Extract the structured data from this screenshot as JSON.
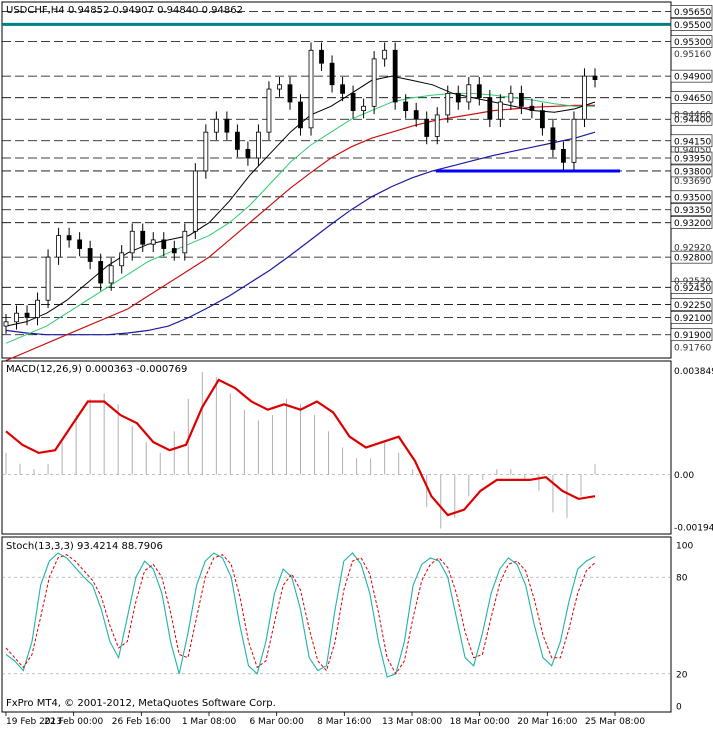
{
  "header": {
    "symbol": "USDCHF,H4",
    "ohlc": "0.94852 0.94907 0.94840 0.94862",
    "macd_label": "MACD(12,26,9) 0.000363 -0.000769",
    "stoch_label": "Stoch(13,3,3) 93.4214 88.7906",
    "copyright": "FxPro MT4, © 2001-2012, MetaQuotes Software Corp."
  },
  "colors": {
    "background": "#ffffff",
    "grid": "#000000",
    "candle": "#000000",
    "ma_fast": "#000000",
    "ma_mid": "#2ecc71",
    "ma_slow": "#cc1111",
    "ma_long": "#1a1aa0",
    "support": "#0000ff",
    "resistance": "#008080",
    "macd_hist": "#b0b0b0",
    "macd_signal": "#dd0000",
    "stoch_main": "#20b2aa",
    "stoch_signal": "#dd0000"
  },
  "chart_data": [
    {
      "type": "candlestick",
      "title": "USDCHF,H4",
      "ylim": [
        0.9163,
        0.9576
      ],
      "price_labels": [
        "0.95650",
        "0.95500",
        "0.95300",
        "0.94900",
        "0.94650",
        "0.94400",
        "0.94150",
        "0.93950",
        "0.93800",
        "0.93500",
        "0.93350",
        "0.93200",
        "0.92800",
        "0.92450",
        "0.92250",
        "0.92100",
        "0.91900"
      ],
      "minor_price_labels": [
        "0.95160",
        "0.94460",
        "0.94050",
        "0.93690",
        "0.92920",
        "0.92530",
        "0.91760"
      ],
      "time_labels": [
        "19 Feb 2013",
        "22 Feb 00:00",
        "26 Feb 16:00",
        "1 Mar 08:00",
        "6 Mar 00:00",
        "8 Mar 16:00",
        "13 Mar 08:00",
        "18 Mar 00:00",
        "20 Mar 16:00",
        "25 Mar 08:00"
      ],
      "horizontal_levels": [
        0.9565,
        0.955,
        0.953,
        0.949,
        0.9465,
        0.944,
        0.9415,
        0.9395,
        0.938,
        0.935,
        0.9335,
        0.932,
        0.928,
        0.9245,
        0.9225,
        0.921,
        0.919
      ],
      "resistance_level": 0.955,
      "support_level": 0.938,
      "close_path": [
        0.9205,
        0.9215,
        0.921,
        0.923,
        0.928,
        0.9305,
        0.93,
        0.929,
        0.9275,
        0.925,
        0.927,
        0.9285,
        0.931,
        0.9295,
        0.93,
        0.929,
        0.9285,
        0.931,
        0.938,
        0.9425,
        0.944,
        0.9425,
        0.9405,
        0.9395,
        0.9425,
        0.9475,
        0.948,
        0.946,
        0.943,
        0.952,
        0.9505,
        0.948,
        0.947,
        0.945,
        0.9455,
        0.951,
        0.952,
        0.946,
        0.945,
        0.944,
        0.942,
        0.9445,
        0.947,
        0.946,
        0.948,
        0.9465,
        0.944,
        0.946,
        0.947,
        0.9455,
        0.945,
        0.943,
        0.9405,
        0.939,
        0.944,
        0.949,
        0.9486
      ],
      "ma_fast": [
        0.92,
        0.9205,
        0.9215,
        0.923,
        0.925,
        0.927,
        0.9285,
        0.9295,
        0.93,
        0.9305,
        0.932,
        0.9345,
        0.9375,
        0.94,
        0.9425,
        0.9445,
        0.9455,
        0.947,
        0.9485,
        0.949,
        0.9485,
        0.948,
        0.947,
        0.9465,
        0.946,
        0.9455,
        0.945,
        0.9448,
        0.9452,
        0.946
      ],
      "ma_mid": [
        0.918,
        0.919,
        0.92,
        0.9215,
        0.923,
        0.9245,
        0.926,
        0.9275,
        0.9285,
        0.9295,
        0.9305,
        0.932,
        0.934,
        0.9365,
        0.939,
        0.941,
        0.9425,
        0.944,
        0.945,
        0.946,
        0.9465,
        0.9468,
        0.947,
        0.947,
        0.9468,
        0.9465,
        0.9462,
        0.9458,
        0.9455,
        0.9455
      ],
      "ma_slow": [
        0.916,
        0.917,
        0.918,
        0.919,
        0.92,
        0.921,
        0.922,
        0.9235,
        0.925,
        0.9265,
        0.928,
        0.93,
        0.932,
        0.934,
        0.936,
        0.9378,
        0.9395,
        0.9408,
        0.9418,
        0.9425,
        0.9432,
        0.9438,
        0.9442,
        0.9446,
        0.945,
        0.9452,
        0.9454,
        0.9455,
        0.9456,
        0.9456
      ],
      "ma_long": [
        0.9195,
        0.9192,
        0.919,
        0.919,
        0.919,
        0.919,
        0.9192,
        0.9195,
        0.92,
        0.921,
        0.9222,
        0.9235,
        0.925,
        0.9265,
        0.9282,
        0.93,
        0.9318,
        0.9335,
        0.935,
        0.9362,
        0.9372,
        0.938,
        0.9386,
        0.9392,
        0.9398,
        0.9403,
        0.9408,
        0.9413,
        0.9418,
        0.9425
      ]
    },
    {
      "type": "bar",
      "title": "MACD(12,26,9) 0.000363 -0.000769",
      "ylim": [
        -0.0022,
        0.0042
      ],
      "tick_labels": [
        "0.003849",
        "0.00",
        "-0.00194"
      ],
      "histogram": [
        0.0008,
        0.0004,
        0.0002,
        0.0004,
        0.0012,
        0.0022,
        0.0028,
        0.003,
        0.0026,
        0.0018,
        0.0012,
        0.0008,
        0.0016,
        0.0028,
        0.0038,
        0.0036,
        0.003,
        0.0024,
        0.002,
        0.0022,
        0.0028,
        0.0026,
        0.0022,
        0.0016,
        0.001,
        0.0006,
        0.0006,
        0.0012,
        0.0008,
        0.0002,
        -0.0012,
        -0.002,
        -0.0016,
        -0.0008,
        -0.0002,
        0.0002,
        0.0002,
        -0.0002,
        -0.0006,
        -0.0014,
        -0.0016,
        -0.0008,
        0.0004
      ],
      "signal": [
        0.0016,
        0.0011,
        0.0008,
        0.0009,
        0.0018,
        0.0027,
        0.0027,
        0.0022,
        0.0019,
        0.0012,
        0.0009,
        0.0011,
        0.0025,
        0.0035,
        0.0032,
        0.0027,
        0.0024,
        0.0026,
        0.0024,
        0.0027,
        0.0023,
        0.0014,
        0.001,
        0.0012,
        0.0014,
        0.0005,
        -0.0008,
        -0.0015,
        -0.0013,
        -0.0006,
        -0.0002,
        -0.0002,
        -0.0002,
        -0.0001,
        -0.0006,
        -0.0009,
        -0.0008
      ]
    },
    {
      "type": "line",
      "title": "Stoch(13,3,3) 93.4214 88.7906",
      "ylim": [
        0,
        100
      ],
      "tick_labels": [
        "100",
        "80",
        "20",
        "0"
      ],
      "series": [
        {
          "name": "main",
          "values": [
            32,
            28,
            22,
            40,
            75,
            90,
            95,
            92,
            86,
            80,
            75,
            60,
            40,
            30,
            55,
            80,
            90,
            85,
            70,
            40,
            20,
            45,
            75,
            90,
            95,
            92,
            80,
            50,
            25,
            20,
            40,
            70,
            85,
            80,
            60,
            30,
            22,
            25,
            60,
            90,
            95,
            88,
            70,
            40,
            18,
            20,
            40,
            75,
            88,
            92,
            90,
            80,
            55,
            30,
            25,
            45,
            70,
            85,
            92,
            88,
            75,
            50,
            30,
            25,
            40,
            65,
            85,
            90,
            93
          ]
        },
        {
          "name": "signal",
          "values": [
            36,
            30,
            24,
            32,
            55,
            80,
            92,
            94,
            90,
            84,
            78,
            68,
            50,
            36,
            40,
            65,
            84,
            88,
            80,
            58,
            32,
            30,
            55,
            80,
            92,
            94,
            88,
            68,
            40,
            24,
            28,
            52,
            75,
            82,
            72,
            48,
            28,
            22,
            40,
            72,
            90,
            92,
            82,
            58,
            30,
            20,
            28,
            55,
            78,
            88,
            92,
            86,
            70,
            46,
            30,
            32,
            55,
            76,
            88,
            90,
            84,
            66,
            44,
            30,
            30,
            48,
            70,
            84,
            89
          ]
        }
      ]
    }
  ]
}
